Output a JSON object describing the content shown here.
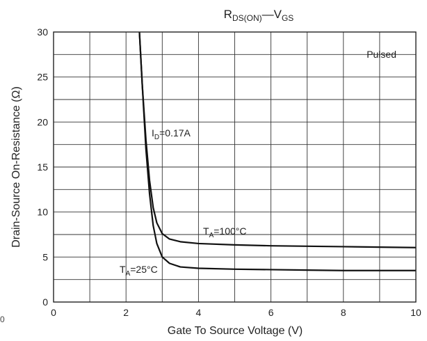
{
  "chart_data": {
    "type": "line",
    "title_main": "R",
    "title_main_sub": "DS(ON)",
    "title_dash": "—",
    "title_second": "V",
    "title_second_sub": "GS",
    "xlabel": "Gate To Source Voltage (V)",
    "ylabel": "Drain-Source On-Resistance (Ω)",
    "xlim": [
      0,
      10
    ],
    "ylim": [
      0,
      30
    ],
    "x_ticks": [
      0,
      2,
      4,
      6,
      8,
      10
    ],
    "y_ticks": [
      0,
      5,
      10,
      15,
      20,
      25,
      30
    ],
    "x_minor_step": 1,
    "y_minor_step": 2.5,
    "grid": true,
    "series": [
      {
        "label_main": "T",
        "label_sub": "A",
        "label_rest": "=100°C",
        "x": [
          2.37,
          2.45,
          2.55,
          2.65,
          2.75,
          2.85,
          3.0,
          3.2,
          3.5,
          4.0,
          5.0,
          6.0,
          7.0,
          8.0,
          9.0,
          10.0
        ],
        "y": [
          30,
          24,
          18,
          13.5,
          10.5,
          8.8,
          7.6,
          7.0,
          6.7,
          6.5,
          6.35,
          6.25,
          6.2,
          6.15,
          6.1,
          6.05
        ]
      },
      {
        "label_main": "T",
        "label_sub": "A",
        "label_rest": "=25°C",
        "x": [
          2.37,
          2.45,
          2.55,
          2.65,
          2.75,
          2.85,
          3.0,
          3.2,
          3.5,
          4.0,
          5.0,
          6.0,
          7.0,
          8.0,
          9.0,
          10.0
        ],
        "y": [
          30,
          24,
          17,
          12,
          8.5,
          6.5,
          5.0,
          4.3,
          3.9,
          3.75,
          3.65,
          3.6,
          3.55,
          3.5,
          3.5,
          3.5
        ]
      }
    ],
    "annotations": {
      "current_main": "I",
      "current_sub": "D",
      "current_rest": "=0.17A",
      "pulsed": "Pulsed"
    },
    "stray_label": "0"
  }
}
